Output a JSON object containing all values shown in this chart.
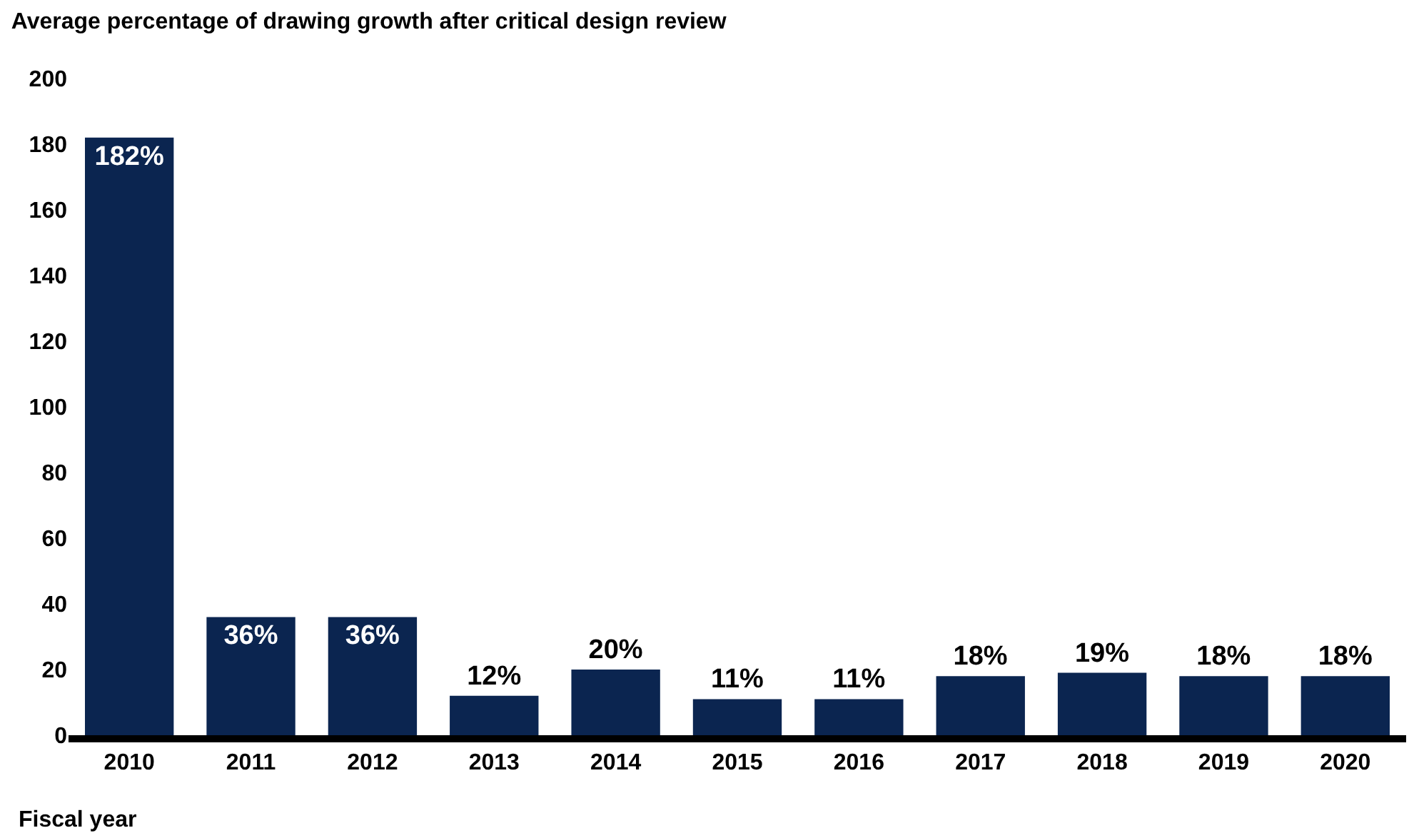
{
  "chart_data": {
    "type": "bar",
    "title": "Average percentage of drawing growth after critical design review",
    "xlabel": "Fiscal year",
    "categories": [
      "2010",
      "2011",
      "2012",
      "2013",
      "2014",
      "2015",
      "2016",
      "2017",
      "2018",
      "2019",
      "2020"
    ],
    "values": [
      182,
      36,
      36,
      12,
      20,
      11,
      11,
      18,
      19,
      18,
      18
    ],
    "value_labels": [
      "182%",
      "36%",
      "36%",
      "12%",
      "20%",
      "11%",
      "11%",
      "18%",
      "19%",
      "18%",
      "18%"
    ],
    "color": "#0b2550",
    "ylim": [
      0,
      200
    ],
    "yticks": [
      0,
      20,
      40,
      60,
      80,
      100,
      120,
      140,
      160,
      180,
      200
    ],
    "grid": false
  }
}
